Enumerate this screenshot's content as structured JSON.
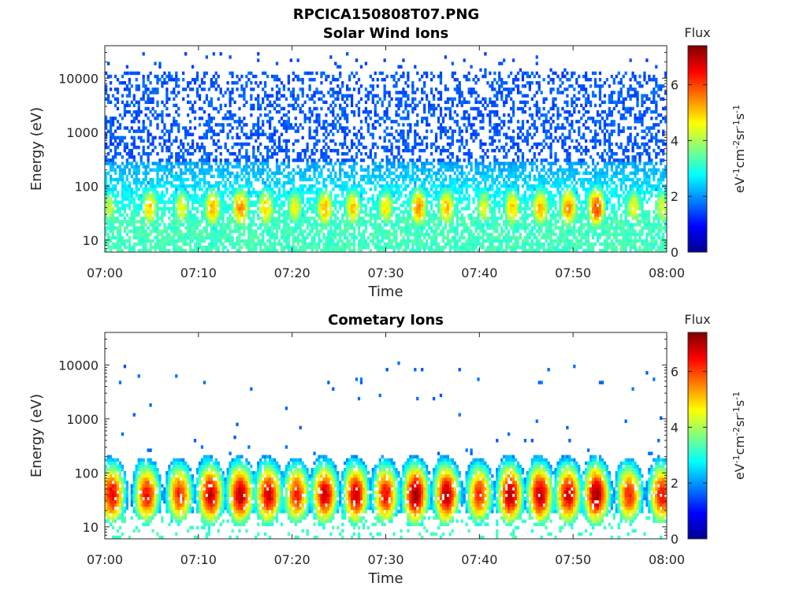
{
  "figure_title": "RPCICA150808T07.PNG",
  "colors": {
    "colormap": [
      "#00008f",
      "#0000ff",
      "#0080ff",
      "#00ffff",
      "#80ff80",
      "#ffff00",
      "#ff8000",
      "#ff0000",
      "#800000"
    ],
    "axis": "#262626",
    "background": "#ffffff"
  },
  "chart_data": [
    {
      "type": "heatmap",
      "title": "Solar Wind Ions",
      "xlabel": "Time",
      "ylabel": "Energy (eV)",
      "x_range": [
        "07:00",
        "08:00"
      ],
      "x_ticks": [
        "07:00",
        "07:10",
        "07:20",
        "07:30",
        "07:40",
        "07:50",
        "08:00"
      ],
      "y_scale": "log",
      "ylim": [
        6,
        40000
      ],
      "y_ticks": [
        10,
        100,
        1000,
        10000
      ],
      "y_tick_labels": [
        "10",
        "100",
        "1000",
        "10000"
      ],
      "colorbar": {
        "title": "Flux",
        "label": "eV-1cm-2sr-1s-1",
        "range": [
          0,
          7.4
        ],
        "ticks": [
          0,
          2,
          4,
          6
        ],
        "tick_labels": [
          "0",
          "2",
          "4",
          "6"
        ]
      },
      "grid": false,
      "background_level_low_energy": 3.0,
      "background_level_high_energy": 1.3,
      "pulses_minutes": [
        0.5,
        4.8,
        8.2,
        11.5,
        14.5,
        17.2,
        20.3,
        23.5,
        26.5,
        30.0,
        33.5,
        36.5,
        40.5,
        43.5,
        46.5,
        49.5,
        52.5,
        56.5,
        59.5
      ],
      "pulse_peak_energy_eV": 40,
      "pulse_peak_flux": [
        4.2,
        5.0,
        4.6,
        5.2,
        5.5,
        5.0,
        4.6,
        5.2,
        5.0,
        4.8,
        5.5,
        5.2,
        4.5,
        5.0,
        5.2,
        5.5,
        6.0,
        4.6,
        4.4
      ]
    },
    {
      "type": "heatmap",
      "title": "Cometary Ions",
      "xlabel": "Time",
      "ylabel": "Energy (eV)",
      "x_range": [
        "07:00",
        "08:00"
      ],
      "x_ticks": [
        "07:00",
        "07:10",
        "07:20",
        "07:30",
        "07:40",
        "07:50",
        "08:00"
      ],
      "y_scale": "log",
      "ylim": [
        6,
        40000
      ],
      "y_ticks": [
        10,
        100,
        1000,
        10000
      ],
      "y_tick_labels": [
        "10",
        "100",
        "1000",
        "10000"
      ],
      "colorbar": {
        "title": "Flux",
        "label": "eV-1cm-2sr-1s-1",
        "range": [
          0,
          7.4
        ],
        "ticks": [
          0,
          2,
          4,
          6
        ],
        "tick_labels": [
          "0",
          "2",
          "4",
          "6"
        ]
      },
      "grid": false,
      "background_level_low_energy": 3.0,
      "background_level_high_energy": 0,
      "pulses_minutes": [
        0.8,
        4.5,
        8.0,
        11.3,
        14.5,
        17.5,
        20.5,
        23.5,
        26.8,
        30.0,
        33.2,
        36.5,
        40.0,
        43.3,
        46.5,
        49.5,
        52.5,
        56.0,
        59.5
      ],
      "pulse_peak_energy_eV": 40,
      "pulse_peak_flux": [
        6.6,
        6.4,
        6.2,
        6.9,
        7.0,
        6.8,
        6.3,
        6.8,
        6.8,
        6.5,
        7.2,
        7.0,
        6.2,
        7.0,
        7.0,
        6.8,
        7.2,
        6.2,
        6.5
      ]
    }
  ]
}
